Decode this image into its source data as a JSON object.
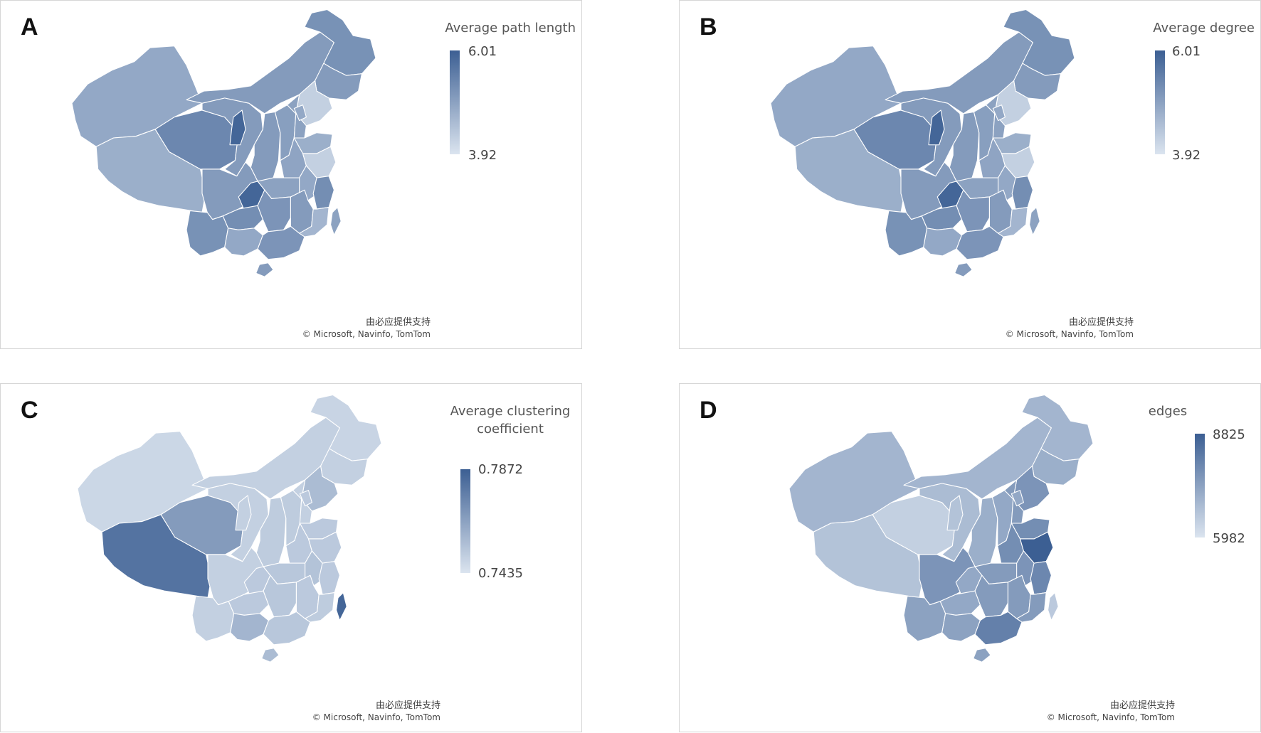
{
  "colors": {
    "scale_low": "#dbe4ef",
    "scale_high": "#3c5f93",
    "border": "#ffffff",
    "frame": "#d6d6d6"
  },
  "panels": [
    {
      "letter": "A",
      "legend": {
        "title": "Average path length",
        "max": "6.01",
        "min": "3.92"
      },
      "credit": {
        "provider": "由必应提供支持",
        "copyright": "© Microsoft, Navinfo, TomTom"
      },
      "regions": {
        "xinjiang": 0.45,
        "tibet": 0.4,
        "qinghai": 0.7,
        "gansu": 0.55,
        "inner_mongolia": 0.55,
        "heilongjiang": 0.62,
        "jilin": 0.55,
        "liaoning": 0.15,
        "ningxia": 0.95,
        "shaanxi": 0.55,
        "shanxi": 0.52,
        "hebei": 0.5,
        "beijing_tianjin": 0.45,
        "shandong": 0.4,
        "henan": 0.48,
        "sichuan": 0.55,
        "chongqing": 0.95,
        "hubei": 0.5,
        "jiangsu": 0.15,
        "anhui": 0.45,
        "zhejiang": 0.65,
        "yunnan": 0.62,
        "guizhou": 0.65,
        "hunan": 0.6,
        "jiangxi": 0.55,
        "fujian": 0.35,
        "guangxi": 0.45,
        "guangdong": 0.6,
        "hainan": 0.55,
        "taiwan": 0.5
      }
    },
    {
      "letter": "B",
      "legend": {
        "title": "Average degree",
        "max": "6.01",
        "min": "3.92"
      },
      "credit": {
        "provider": "由必应提供支持",
        "copyright": "© Microsoft, Navinfo, TomTom"
      },
      "regions": {
        "xinjiang": 0.45,
        "tibet": 0.4,
        "qinghai": 0.7,
        "gansu": 0.55,
        "inner_mongolia": 0.55,
        "heilongjiang": 0.62,
        "jilin": 0.55,
        "liaoning": 0.15,
        "ningxia": 0.95,
        "shaanxi": 0.55,
        "shanxi": 0.52,
        "hebei": 0.5,
        "beijing_tianjin": 0.45,
        "shandong": 0.4,
        "henan": 0.48,
        "sichuan": 0.55,
        "chongqing": 0.95,
        "hubei": 0.5,
        "jiangsu": 0.15,
        "anhui": 0.45,
        "zhejiang": 0.65,
        "yunnan": 0.62,
        "guizhou": 0.65,
        "hunan": 0.6,
        "jiangxi": 0.55,
        "fujian": 0.35,
        "guangxi": 0.45,
        "guangdong": 0.6,
        "hainan": 0.55,
        "taiwan": 0.5
      }
    },
    {
      "letter": "C",
      "legend": {
        "title_lines": [
          "Average clustering",
          "coefficient"
        ],
        "max": "0.7872",
        "min": "0.7435"
      },
      "credit": {
        "provider": "由必应提供支持",
        "copyright": "© Microsoft, Navinfo, TomTom"
      },
      "regions": {
        "xinjiang": 0.1,
        "tibet": 0.85,
        "qinghai": 0.55,
        "gansu": 0.15,
        "inner_mongolia": 0.15,
        "heilongjiang": 0.12,
        "jilin": 0.15,
        "liaoning": 0.3,
        "ningxia": 0.15,
        "shaanxi": 0.18,
        "shanxi": 0.18,
        "hebei": 0.15,
        "beijing_tianjin": 0.2,
        "shandong": 0.2,
        "henan": 0.2,
        "sichuan": 0.15,
        "chongqing": 0.2,
        "hubei": 0.22,
        "jiangsu": 0.2,
        "anhui": 0.25,
        "zhejiang": 0.2,
        "yunnan": 0.15,
        "guizhou": 0.2,
        "hunan": 0.22,
        "jiangxi": 0.2,
        "fujian": 0.18,
        "guangxi": 0.35,
        "guangdong": 0.22,
        "hainan": 0.3,
        "taiwan": 0.95
      }
    },
    {
      "letter": "D",
      "legend": {
        "title": "edges",
        "max": "8825",
        "min": "5982"
      },
      "credit": {
        "provider": "由必应提供支持",
        "copyright": "© Microsoft, Navinfo, TomTom"
      },
      "regions": {
        "xinjiang": 0.35,
        "tibet": 0.25,
        "qinghai": 0.15,
        "gansu": 0.3,
        "inner_mongolia": 0.35,
        "heilongjiang": 0.35,
        "jilin": 0.4,
        "liaoning": 0.6,
        "ningxia": 0.25,
        "shaanxi": 0.4,
        "shanxi": 0.45,
        "hebei": 0.55,
        "beijing_tianjin": 0.45,
        "shandong": 0.65,
        "henan": 0.65,
        "sichuan": 0.6,
        "chongqing": 0.45,
        "hubei": 0.55,
        "jiangsu": 1.0,
        "anhui": 0.6,
        "zhejiang": 0.7,
        "yunnan": 0.5,
        "guizhou": 0.45,
        "hunan": 0.55,
        "jiangxi": 0.55,
        "fujian": 0.55,
        "guangxi": 0.5,
        "guangdong": 0.75,
        "hainan": 0.5,
        "taiwan": 0.2
      }
    }
  ]
}
